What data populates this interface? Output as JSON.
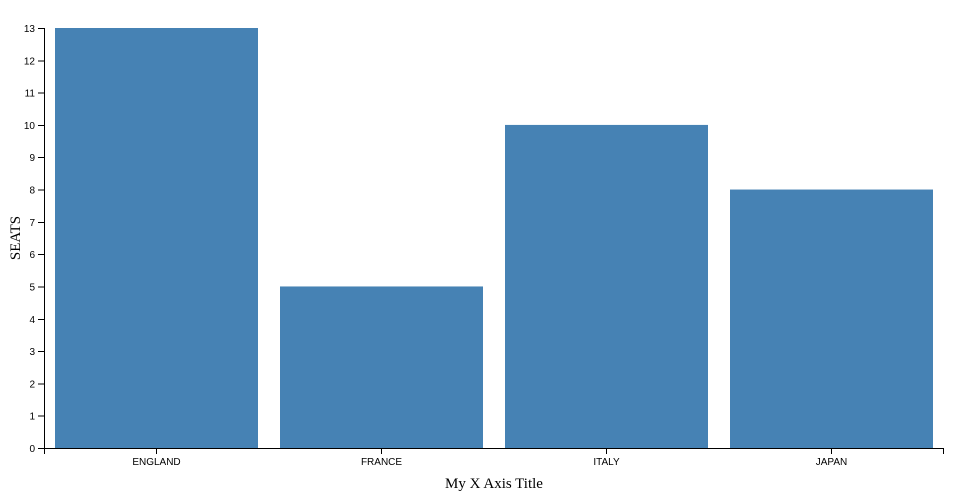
{
  "chart_data": {
    "type": "bar",
    "categories": [
      "ENGLAND",
      "FRANCE",
      "ITALY",
      "JAPAN"
    ],
    "values": [
      13,
      5,
      10,
      8
    ],
    "xlabel": "My X Axis Title",
    "ylabel": "SEATS",
    "ylim": [
      0,
      13
    ],
    "yticks": [
      0,
      1,
      2,
      3,
      4,
      5,
      6,
      7,
      8,
      9,
      10,
      11,
      12,
      13
    ],
    "grid": false,
    "bar_color": "#4682b4"
  }
}
